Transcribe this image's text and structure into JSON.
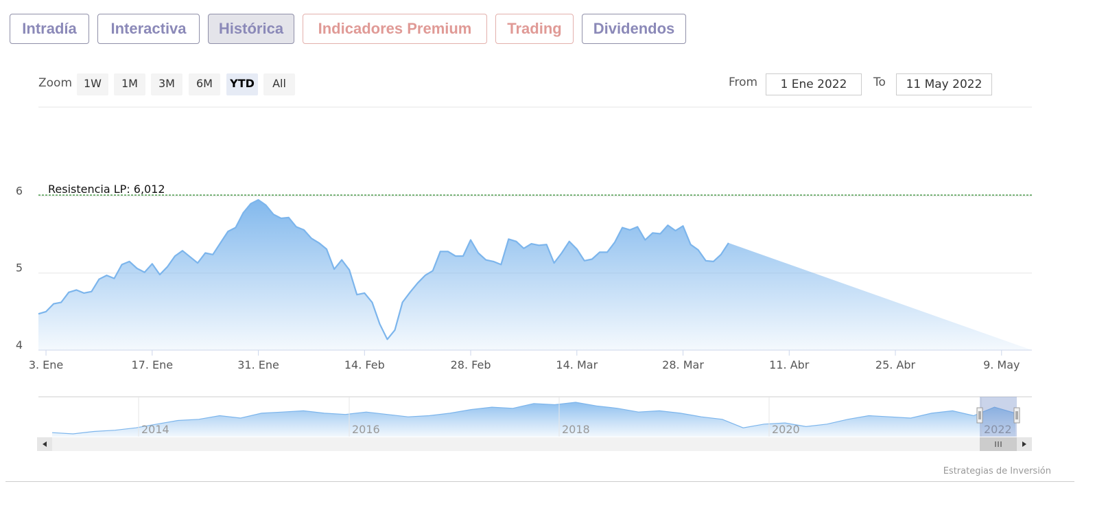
{
  "tabs": [
    {
      "label": "Intradía",
      "style": "normal"
    },
    {
      "label": "Interactiva",
      "style": "normal"
    },
    {
      "label": "Histórica",
      "style": "active"
    },
    {
      "label": "Indicadores Premium",
      "style": "red"
    },
    {
      "label": "Trading",
      "style": "red"
    },
    {
      "label": "Dividendos",
      "style": "normal"
    }
  ],
  "zoom": {
    "label": "Zoom",
    "buttons": [
      "1W",
      "1M",
      "3M",
      "6M",
      "YTD",
      "All"
    ],
    "selected": "YTD"
  },
  "range": {
    "from_label": "From",
    "from_value": "1 Ene 2022",
    "to_label": "To",
    "to_value": "11 May 2022"
  },
  "credit": "Estrategias de Inversión",
  "colors": {
    "accent": "#7cb5ec",
    "tab_text": "#8b89b8",
    "tab_red": "#e09a96",
    "resistance": "#2e8b2e"
  },
  "chart_data": {
    "type": "area",
    "title": "",
    "xlabel": "",
    "ylabel": "",
    "ylim": [
      4,
      6.2
    ],
    "yticks": [
      4,
      5,
      6
    ],
    "xlim": [
      "2022-01-02",
      "2022-05-13"
    ],
    "xticks": [
      {
        "date": "2022-01-03",
        "label": "3. Ene"
      },
      {
        "date": "2022-01-17",
        "label": "17. Ene"
      },
      {
        "date": "2022-01-31",
        "label": "31. Ene"
      },
      {
        "date": "2022-02-14",
        "label": "14. Feb"
      },
      {
        "date": "2022-02-28",
        "label": "28. Feb"
      },
      {
        "date": "2022-03-14",
        "label": "14. Mar"
      },
      {
        "date": "2022-03-28",
        "label": "28. Mar"
      },
      {
        "date": "2022-04-11",
        "label": "11. Abr"
      },
      {
        "date": "2022-04-25",
        "label": "25. Abr"
      },
      {
        "date": "2022-05-09",
        "label": "9. May"
      }
    ],
    "grid": true,
    "annotation": {
      "label": "Resistencia LP: 6,012",
      "value": 6.012
    },
    "series": [
      {
        "values": [
          [
            "2022-01-02",
            4.47
          ],
          [
            "2022-01-03",
            4.5
          ],
          [
            "2022-01-04",
            4.6
          ],
          [
            "2022-01-05",
            4.62
          ],
          [
            "2022-01-06",
            4.75
          ],
          [
            "2022-01-07",
            4.78
          ],
          [
            "2022-01-08",
            4.74
          ],
          [
            "2022-01-09",
            4.76
          ],
          [
            "2022-01-10",
            4.92
          ],
          [
            "2022-01-11",
            4.97
          ],
          [
            "2022-01-12",
            4.93
          ],
          [
            "2022-01-13",
            5.11
          ],
          [
            "2022-01-14",
            5.15
          ],
          [
            "2022-01-15",
            5.06
          ],
          [
            "2022-01-16",
            5.01
          ],
          [
            "2022-01-17",
            5.12
          ],
          [
            "2022-01-18",
            4.98
          ],
          [
            "2022-01-19",
            5.08
          ],
          [
            "2022-01-20",
            5.22
          ],
          [
            "2022-01-21",
            5.29
          ],
          [
            "2022-01-22",
            5.21
          ],
          [
            "2022-01-23",
            5.13
          ],
          [
            "2022-01-24",
            5.26
          ],
          [
            "2022-01-25",
            5.24
          ],
          [
            "2022-01-26",
            5.39
          ],
          [
            "2022-01-27",
            5.54
          ],
          [
            "2022-01-28",
            5.59
          ],
          [
            "2022-01-29",
            5.78
          ],
          [
            "2022-01-30",
            5.9
          ],
          [
            "2022-01-31",
            5.95
          ],
          [
            "2022-02-01",
            5.88
          ],
          [
            "2022-02-02",
            5.76
          ],
          [
            "2022-02-03",
            5.71
          ],
          [
            "2022-02-04",
            5.72
          ],
          [
            "2022-02-05",
            5.6
          ],
          [
            "2022-02-06",
            5.56
          ],
          [
            "2022-02-07",
            5.45
          ],
          [
            "2022-02-08",
            5.39
          ],
          [
            "2022-02-09",
            5.31
          ],
          [
            "2022-02-10",
            5.05
          ],
          [
            "2022-02-11",
            5.17
          ],
          [
            "2022-02-12",
            5.04
          ],
          [
            "2022-02-13",
            4.72
          ],
          [
            "2022-02-14",
            4.74
          ],
          [
            "2022-02-15",
            4.62
          ],
          [
            "2022-02-16",
            4.34
          ],
          [
            "2022-02-17",
            4.14
          ],
          [
            "2022-02-18",
            4.26
          ],
          [
            "2022-02-19",
            4.62
          ],
          [
            "2022-02-20",
            4.75
          ],
          [
            "2022-02-21",
            4.87
          ],
          [
            "2022-02-22",
            4.97
          ],
          [
            "2022-02-23",
            5.03
          ],
          [
            "2022-02-24",
            5.28
          ],
          [
            "2022-02-25",
            5.28
          ],
          [
            "2022-02-26",
            5.22
          ],
          [
            "2022-02-27",
            5.22
          ],
          [
            "2022-02-28",
            5.43
          ],
          [
            "2022-03-01",
            5.26
          ],
          [
            "2022-03-02",
            5.17
          ],
          [
            "2022-03-03",
            5.15
          ],
          [
            "2022-03-04",
            5.11
          ],
          [
            "2022-03-05",
            5.44
          ],
          [
            "2022-03-06",
            5.41
          ],
          [
            "2022-03-07",
            5.32
          ],
          [
            "2022-03-08",
            5.38
          ],
          [
            "2022-03-09",
            5.36
          ],
          [
            "2022-03-10",
            5.37
          ],
          [
            "2022-03-11",
            5.13
          ],
          [
            "2022-03-12",
            5.26
          ],
          [
            "2022-03-13",
            5.41
          ],
          [
            "2022-03-14",
            5.31
          ],
          [
            "2022-03-15",
            5.16
          ],
          [
            "2022-03-16",
            5.18
          ],
          [
            "2022-03-17",
            5.27
          ],
          [
            "2022-03-18",
            5.27
          ],
          [
            "2022-03-19",
            5.4
          ],
          [
            "2022-03-20",
            5.59
          ],
          [
            "2022-03-21",
            5.56
          ],
          [
            "2022-03-22",
            5.6
          ],
          [
            "2022-03-23",
            5.43
          ],
          [
            "2022-03-24",
            5.52
          ],
          [
            "2022-03-25",
            5.51
          ],
          [
            "2022-03-26",
            5.62
          ],
          [
            "2022-03-27",
            5.55
          ],
          [
            "2022-03-28",
            5.61
          ],
          [
            "2022-03-29",
            5.37
          ],
          [
            "2022-03-30",
            5.3
          ],
          [
            "2022-03-31",
            5.16
          ],
          [
            "2022-04-01",
            5.15
          ],
          [
            "2022-04-02",
            5.24
          ],
          [
            "2022-04-03",
            5.39
          ]
        ]
      }
    ],
    "navigator": {
      "x_labels": [
        "2014",
        "2016",
        "2018",
        "2020",
        "2022"
      ],
      "values": [
        2.2,
        2.1,
        2.3,
        2.4,
        2.6,
        2.9,
        3.2,
        3.3,
        3.6,
        3.4,
        3.8,
        3.9,
        4.0,
        3.8,
        3.7,
        3.9,
        3.7,
        3.5,
        3.6,
        3.8,
        4.1,
        4.3,
        4.2,
        4.6,
        4.5,
        4.7,
        4.4,
        4.2,
        3.9,
        4.0,
        3.8,
        3.5,
        3.3,
        2.6,
        2.9,
        3.0,
        2.7,
        2.9,
        3.3,
        3.6,
        3.5,
        3.4,
        3.8,
        4.0,
        3.6,
        4.3,
        3.8
      ]
    }
  }
}
